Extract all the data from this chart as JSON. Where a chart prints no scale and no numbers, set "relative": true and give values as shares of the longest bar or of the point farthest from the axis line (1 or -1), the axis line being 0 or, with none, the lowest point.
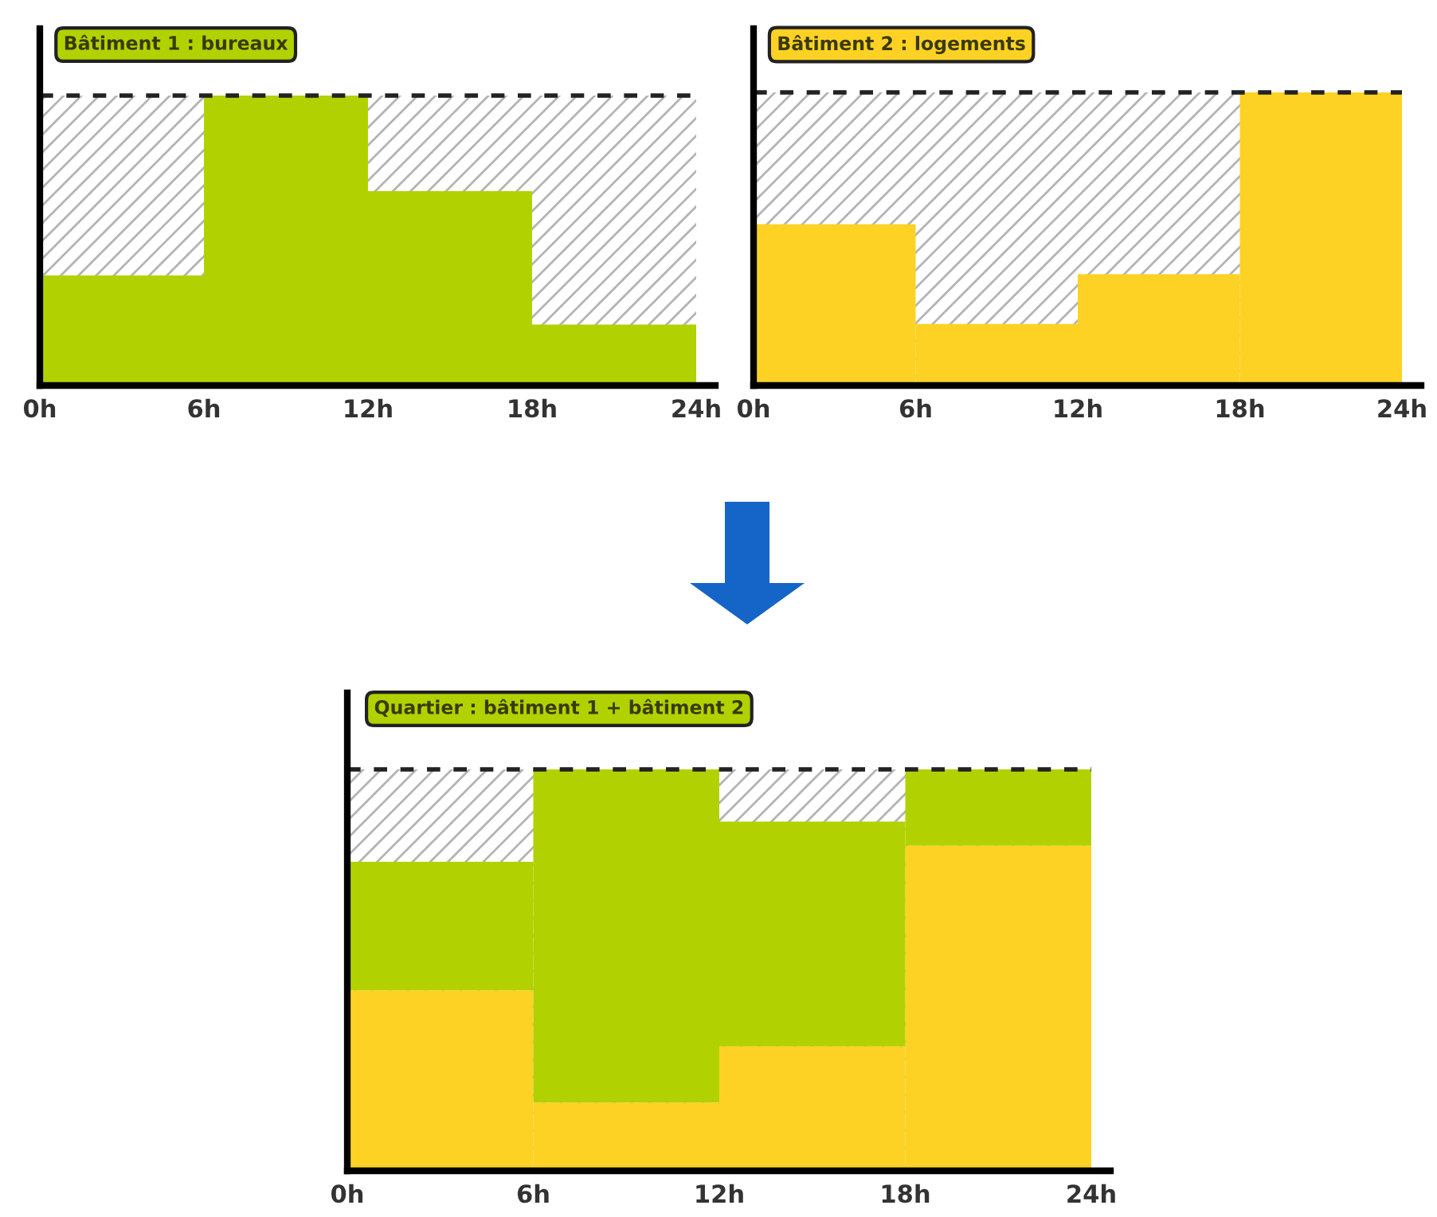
{
  "chart_data": [
    {
      "type": "bar",
      "title": "Bâtiment 1 : bureaux",
      "relative": true,
      "x": [
        3,
        9,
        15,
        21
      ],
      "xlim": [
        0,
        24
      ],
      "xticks": [
        {
          "value": 0,
          "label": "0h"
        },
        {
          "value": 6,
          "label": "6h"
        },
        {
          "value": 12,
          "label": "12h"
        },
        {
          "value": 18,
          "label": "18h"
        },
        {
          "value": 24,
          "label": "24h"
        }
      ],
      "tick_labels": "x",
      "series": [
        {
          "color": "#b2d200",
          "values": [
            0.38,
            1,
            0.67,
            0.21
          ]
        }
      ],
      "ref_lines": [
        {
          "axis": "y",
          "value": 1,
          "line_style": "dashed"
        }
      ],
      "bands": [
        {
          "axis": "y",
          "from": 0,
          "to": 1,
          "color": "#b4b4b4"
        }
      ]
    },
    {
      "type": "bar",
      "title": "Bâtiment 2 : logements",
      "relative": true,
      "x": [
        3,
        9,
        15,
        21
      ],
      "xlim": [
        0,
        24
      ],
      "xticks": [
        {
          "value": 0,
          "label": "0h"
        },
        {
          "value": 6,
          "label": "6h"
        },
        {
          "value": 12,
          "label": "12h"
        },
        {
          "value": 18,
          "label": "18h"
        },
        {
          "value": 24,
          "label": "24h"
        }
      ],
      "tick_labels": "x",
      "series": [
        {
          "color": "#fdd224",
          "values": [
            0.55,
            0.21,
            0.38,
            1
          ]
        }
      ],
      "ref_lines": [
        {
          "axis": "y",
          "value": 1,
          "line_style": "dashed"
        }
      ],
      "bands": [
        {
          "axis": "y",
          "from": 0,
          "to": 1,
          "color": "#b4b4b4"
        }
      ]
    },
    {
      "type": "bar",
      "title": "Quartier : bâtiment 1 + bâtiment 2",
      "relative": true,
      "stacked": true,
      "x": [
        3,
        9,
        15,
        21
      ],
      "xlim": [
        0,
        24
      ],
      "xticks": [
        {
          "value": 0,
          "label": "0h"
        },
        {
          "value": 6,
          "label": "6h"
        },
        {
          "value": 12,
          "label": "12h"
        },
        {
          "value": 18,
          "label": "18h"
        },
        {
          "value": 24,
          "label": "24h"
        }
      ],
      "tick_labels": "x",
      "series": [
        {
          "color": "#fdd224",
          "values": [
            0.45,
            0.17,
            0.31,
            0.81
          ]
        },
        {
          "color": "#b2d200",
          "values": [
            0.32,
            0.83,
            0.56,
            0.19
          ]
        }
      ],
      "ref_lines": [
        {
          "axis": "y",
          "value": 1,
          "line_style": "dashed"
        }
      ],
      "bands": [
        {
          "axis": "y",
          "from": 0,
          "to": 1,
          "color": "#b4b4b4"
        }
      ]
    }
  ]
}
